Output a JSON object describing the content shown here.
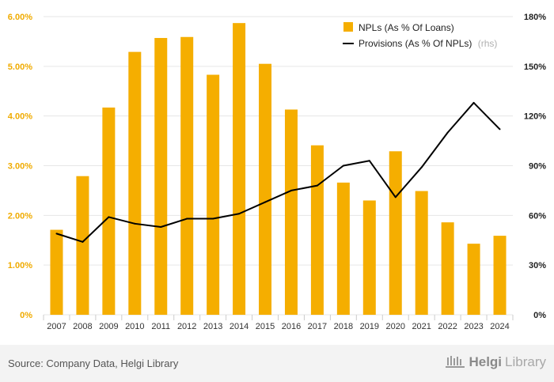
{
  "chart_data": {
    "type": "bar",
    "categories": [
      "2007",
      "2008",
      "2009",
      "2010",
      "2011",
      "2012",
      "2013",
      "2014",
      "2015",
      "2016",
      "2017",
      "2018",
      "2019",
      "2020",
      "2021",
      "2022",
      "2023",
      "2024"
    ],
    "series": [
      {
        "name": "NPLs (As % Of Loans)",
        "type": "bar",
        "axis": "left",
        "color": "#f5ae00",
        "values": [
          1.71,
          2.79,
          4.17,
          5.29,
          5.57,
          5.59,
          4.83,
          5.87,
          5.05,
          4.13,
          3.41,
          2.66,
          2.3,
          3.29,
          2.49,
          1.86,
          1.43,
          1.59
        ]
      },
      {
        "name": "Provisions (As % Of NPLs)",
        "note": "(rhs)",
        "type": "line",
        "axis": "right",
        "color": "#000000",
        "values": [
          49,
          44,
          59,
          55,
          53,
          58,
          58,
          61,
          68,
          75,
          78,
          90,
          93,
          71,
          89,
          110,
          128,
          112
        ]
      }
    ],
    "y_left": {
      "min": 0,
      "max": 6,
      "step": 1,
      "ticks": [
        "0%",
        "1.00%",
        "2.00%",
        "3.00%",
        "4.00%",
        "5.00%",
        "6.00%"
      ]
    },
    "y_right": {
      "min": 0,
      "max": 180,
      "step": 30,
      "ticks": [
        "0%",
        "30%",
        "60%",
        "90%",
        "120%",
        "150%",
        "180%"
      ]
    },
    "grid": true,
    "legend": "top-right"
  },
  "footer": {
    "source": "Source: Company Data, Helgi Library",
    "brand_bold": "Helgi",
    "brand_light": "Library"
  },
  "colors": {
    "bar": "#f5ae00",
    "line": "#000000",
    "grid": "#e6e6e6",
    "footer_bg": "#f3f3f3"
  }
}
